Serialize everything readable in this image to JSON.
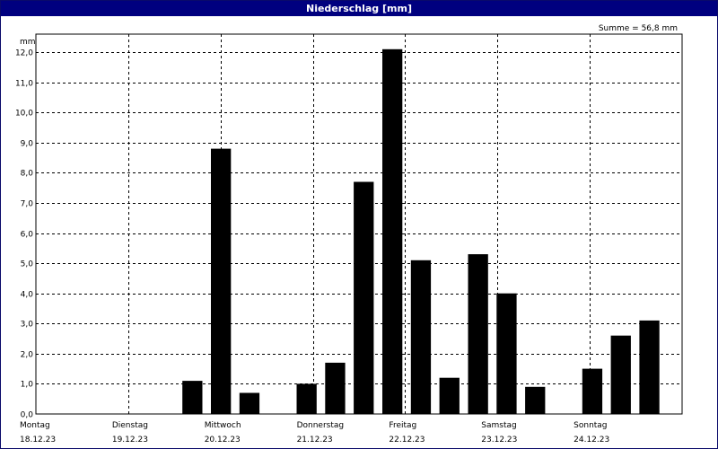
{
  "window": {
    "title": "Niederschlag [mm]"
  },
  "summary": "Summe = 56,8 mm",
  "chart_data": {
    "type": "bar",
    "title": "Niederschlag [mm]",
    "ylabel": "mm",
    "ylim": [
      0,
      12.6
    ],
    "yticks": [
      "0,0",
      "1,0",
      "2,0",
      "3,0",
      "4,0",
      "5,0",
      "6,0",
      "7,0",
      "8,0",
      "9,0",
      "10,0",
      "11,0",
      "12,0"
    ],
    "days": [
      {
        "name": "Montag",
        "date": "18.12.23"
      },
      {
        "name": "Dienstag",
        "date": "19.12.23"
      },
      {
        "name": "Mittwoch",
        "date": "20.12.23"
      },
      {
        "name": "Donnerstag",
        "date": "21.12.23"
      },
      {
        "name": "Freitag",
        "date": "22.12.23"
      },
      {
        "name": "Samstag",
        "date": "23.12.23"
      },
      {
        "name": "Sonntag",
        "date": "24.12.23"
      }
    ],
    "values": [
      0,
      0,
      0,
      0,
      0,
      1.1,
      8.8,
      0.7,
      0,
      1.0,
      1.7,
      7.7,
      12.1,
      5.1,
      1.2,
      5.3,
      4.0,
      0.9,
      0,
      1.5,
      2.6,
      3.1
    ],
    "grid": true,
    "bar_color": "#000000"
  }
}
